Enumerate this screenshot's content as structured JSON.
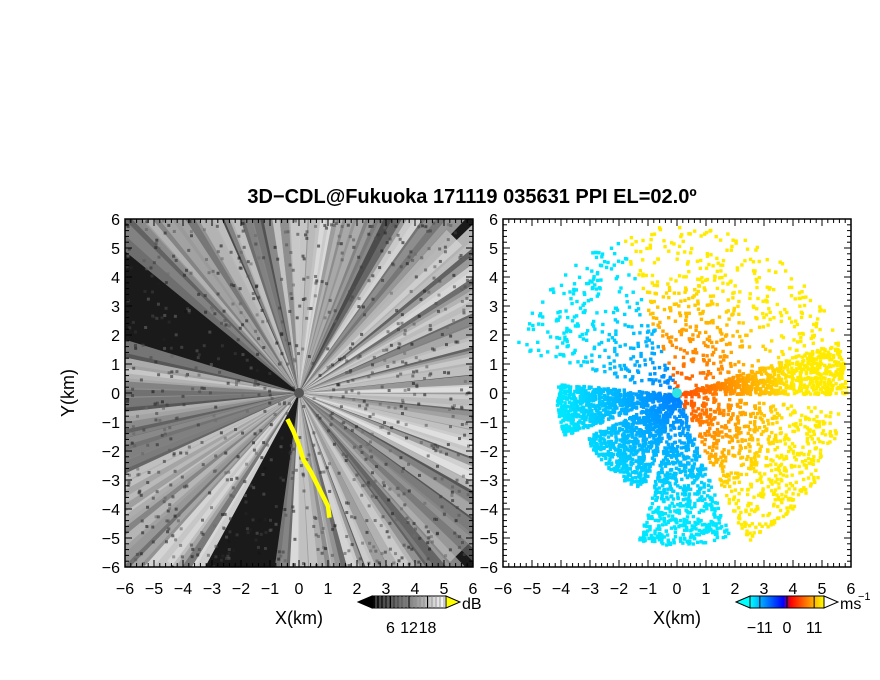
{
  "title": "3D−CDL@Fukuoka 171119 035631 PPI EL=02.0º",
  "chart_data": [
    {
      "type": "heatmap",
      "panel": "left",
      "xlabel": "X(km)",
      "ylabel": "Y(km)",
      "xlim": [
        -6,
        6
      ],
      "ylim": [
        -6,
        6
      ],
      "x_ticks": [
        "−6",
        "−5",
        "−4",
        "−3",
        "−2",
        "−1",
        "0",
        "1",
        "2",
        "3",
        "4",
        "5",
        "6"
      ],
      "y_ticks": [
        "6",
        "5",
        "4",
        "3",
        "2",
        "1",
        "0",
        "−1",
        "−2",
        "−3",
        "−4",
        "−5",
        "−6"
      ],
      "colorbar": {
        "unit": "dB",
        "tick_values": [
          "6",
          "12",
          "18"
        ],
        "range": [
          0,
          24
        ],
        "colors": [
          "#000000",
          "#ffffff"
        ],
        "overflow_color": "#ffff00"
      }
    },
    {
      "type": "heatmap",
      "panel": "right",
      "xlabel": "X(km)",
      "xlim": [
        -6,
        6
      ],
      "ylim": [
        -6,
        6
      ],
      "x_ticks": [
        "−6",
        "−5",
        "−4",
        "−3",
        "−2",
        "−1",
        "0",
        "1",
        "2",
        "3",
        "4",
        "5",
        "6"
      ],
      "y_ticks": [
        "6",
        "5",
        "4",
        "3",
        "2",
        "1",
        "0",
        "−1",
        "−2",
        "−3",
        "−4",
        "−5",
        "−6"
      ],
      "colorbar": {
        "unit": "ms",
        "unit_exponent": "−1",
        "tick_values": [
          "−11",
          "0",
          "11"
        ],
        "range": [
          -15,
          15
        ],
        "colors": [
          "#00ffff",
          "#0000ff",
          "#ff0000",
          "#ffff00"
        ]
      }
    }
  ]
}
